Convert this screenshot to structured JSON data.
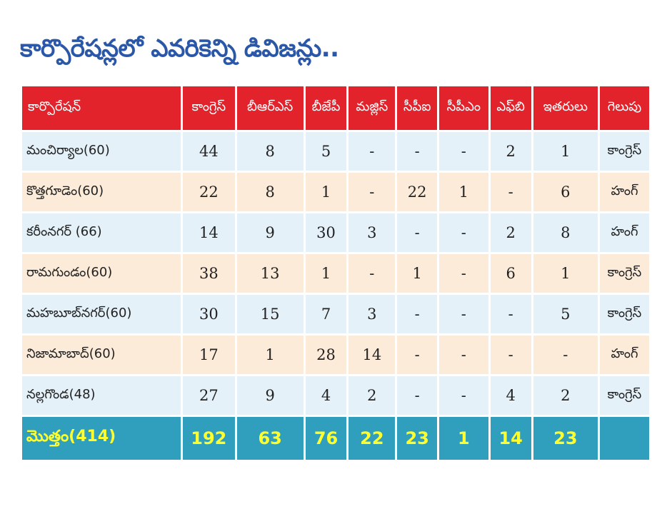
{
  "title": "కార్పొరేషన్లలో ఎవరికెన్ని డివిజన్లు..",
  "columns": [
    "కార్పొరేషన్",
    "కాంగ్రెస్",
    "బీఆర్ఎస్",
    "బీజేపీ",
    "మజ్లిస్",
    "సీపీఐ",
    "సీపీఎం",
    "ఎఫ్‌బి",
    "ఇతరులు",
    "గెలుపు"
  ],
  "rows": [
    [
      "మంచిర్యాల(60)",
      "44",
      "8",
      "5",
      "-",
      "-",
      "-",
      "2",
      "1",
      "కాంగ్రెస్"
    ],
    [
      "కొత్తగూడెం(60)",
      "22",
      "8",
      "1",
      "-",
      "22",
      "1",
      "-",
      "6",
      "హంగ్"
    ],
    [
      "కరీంనగర్ (66)",
      "14",
      "9",
      "30",
      "3",
      "-",
      "-",
      "2",
      "8",
      "హంగ్"
    ],
    [
      "రామగుండం(60)",
      "38",
      "13",
      "1",
      "-",
      "1",
      "-",
      "6",
      "1",
      "కాంగ్రెస్"
    ],
    [
      "మహబూబ్‌నగర్(60)",
      "30",
      "15",
      "7",
      "3",
      "-",
      "-",
      "-",
      "5",
      "కాంగ్రెస్"
    ],
    [
      "నిజామాబాద్(60)",
      "17",
      "1",
      "28",
      "14",
      "-",
      "-",
      "-",
      "-",
      "హంగ్"
    ],
    [
      "నల్లగొండ(48)",
      "27",
      "9",
      "4",
      "2",
      "-",
      "-",
      "4",
      "2",
      "కాంగ్రెస్"
    ]
  ],
  "total": [
    "మొత్తం(414)",
    "192",
    "63",
    "76",
    "22",
    "23",
    "1",
    "14",
    "23",
    ""
  ],
  "colors": {
    "header_bg": "#e2232b",
    "title": "#2b57a8",
    "row_blue": "#e4f1f9",
    "row_peach": "#fcebd9",
    "total_bg": "#2f9fbd",
    "total_text": "#ffff2e"
  }
}
